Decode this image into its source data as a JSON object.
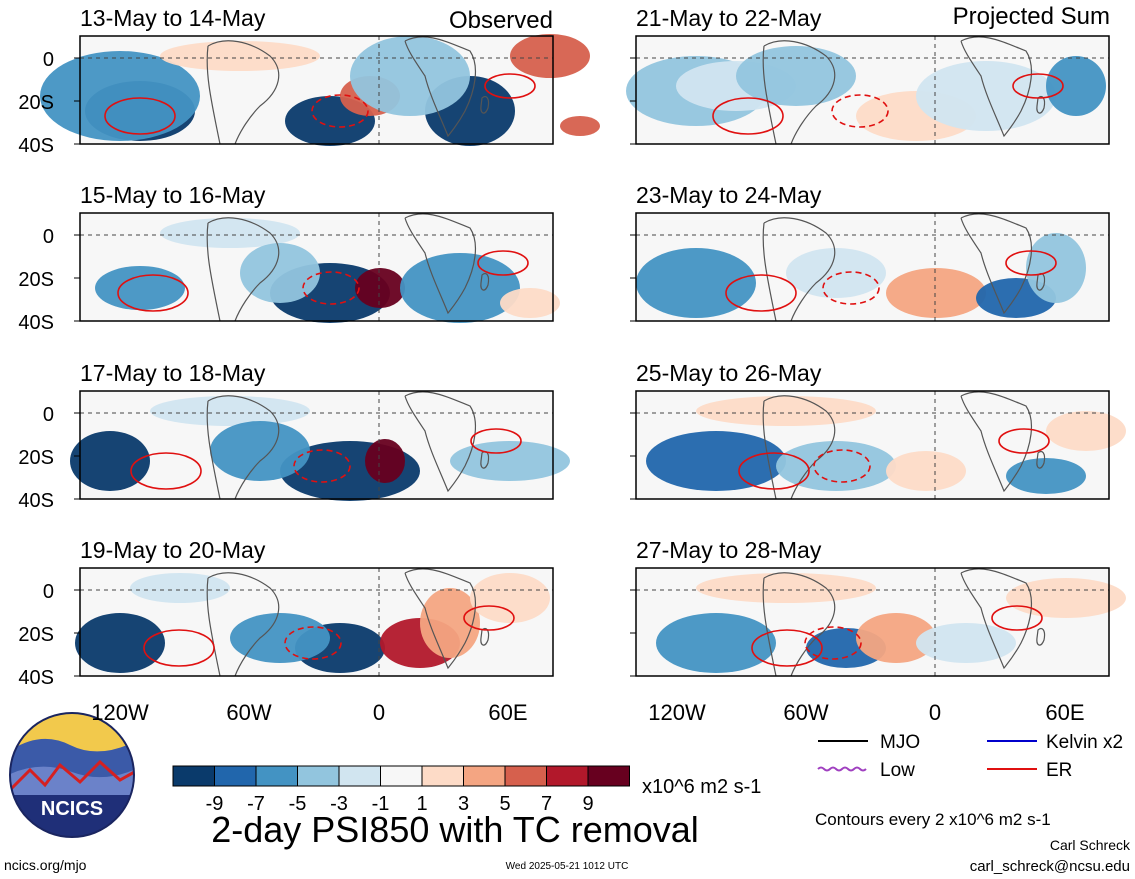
{
  "figure": {
    "title": "2-day PSI850 with TC removal",
    "credit_url": "ncics.org/mjo",
    "timestamp": "Wed 2025-05-21 1012 UTC",
    "author": "Carl Schreck",
    "email": "carl_schreck@ncsu.edu",
    "logo_text": "NCICS",
    "contour_note": "Contours every 2 x10^6 m2 s-1"
  },
  "columns": [
    {
      "label": "Observed",
      "panels": [
        "13-May to 14-May",
        "15-May to 16-May",
        "17-May to 18-May",
        "19-May to 20-May"
      ]
    },
    {
      "label": "Projected Sum",
      "panels": [
        "21-May to 22-May",
        "23-May to 24-May",
        "25-May to 26-May",
        "27-May to 28-May"
      ]
    }
  ],
  "axes": {
    "lat_ticks": [
      "0",
      "20S",
      "40S"
    ],
    "lon_ticks": [
      "120W",
      "60W",
      "0",
      "60E"
    ]
  },
  "colorbar": {
    "labels": [
      "-9",
      "-7",
      "-5",
      "-3",
      "-1",
      "1",
      "3",
      "5",
      "7",
      "9"
    ],
    "units": "x10^6 m2 s-1",
    "colors": [
      "#0a3a6b",
      "#2166ac",
      "#4393c3",
      "#92c5de",
      "#d1e5f0",
      "#f7f7f7",
      "#fddbc7",
      "#f4a582",
      "#d6604d",
      "#b2182b",
      "#67001f"
    ]
  },
  "legend": [
    {
      "label": "MJO",
      "color": "#000000",
      "style": "solid"
    },
    {
      "label": "Kelvin x2",
      "color": "#0000cc",
      "style": "solid"
    },
    {
      "label": "Low",
      "color": "#a040c0",
      "style": "wavy"
    },
    {
      "label": "ER",
      "color": "#e01010",
      "style": "solid"
    }
  ]
}
